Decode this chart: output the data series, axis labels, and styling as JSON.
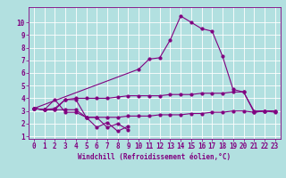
{
  "xlabel": "Windchill (Refroidissement éolien,°C)",
  "background_color": "#b2e0e0",
  "grid_color": "#ffffff",
  "line_color": "#800080",
  "xlim": [
    -0.5,
    23.5
  ],
  "ylim": [
    0.8,
    11.2
  ],
  "xticks": [
    0,
    1,
    2,
    3,
    4,
    5,
    6,
    7,
    8,
    9,
    10,
    11,
    12,
    13,
    14,
    15,
    16,
    17,
    18,
    19,
    20,
    21,
    22,
    23
  ],
  "yticks": [
    1,
    2,
    3,
    4,
    5,
    6,
    7,
    8,
    9,
    10
  ],
  "series1_x": [
    0,
    1,
    2,
    3,
    4,
    5,
    6,
    7,
    8,
    9
  ],
  "series1_y": [
    3.2,
    3.1,
    3.1,
    3.9,
    3.9,
    2.5,
    2.5,
    1.7,
    2.0,
    1.5
  ],
  "series2_x": [
    0,
    1,
    2,
    3,
    4,
    5,
    6,
    7,
    8,
    9
  ],
  "series2_y": [
    3.2,
    3.1,
    3.9,
    2.9,
    2.9,
    2.5,
    1.7,
    2.1,
    1.4,
    1.8
  ],
  "series3_x": [
    0,
    1,
    2,
    3,
    4,
    5,
    6,
    7,
    8,
    9,
    10,
    11,
    12,
    13,
    14,
    15,
    16,
    17,
    18,
    19,
    20,
    21,
    22,
    23
  ],
  "series3_y": [
    3.2,
    3.1,
    3.2,
    3.9,
    4.0,
    4.0,
    4.0,
    4.0,
    4.1,
    4.2,
    4.2,
    4.2,
    4.2,
    4.3,
    4.3,
    4.3,
    4.4,
    4.4,
    4.4,
    4.5,
    4.5,
    3.0,
    3.0,
    3.0
  ],
  "series4_x": [
    0,
    1,
    2,
    3,
    4,
    5,
    6,
    7,
    8,
    9,
    10,
    11,
    12,
    13,
    14,
    15,
    16,
    17,
    18,
    19,
    20,
    21,
    22,
    23
  ],
  "series4_y": [
    3.2,
    3.1,
    3.1,
    3.1,
    3.1,
    2.5,
    2.5,
    2.5,
    2.5,
    2.6,
    2.6,
    2.6,
    2.7,
    2.7,
    2.7,
    2.8,
    2.8,
    2.9,
    2.9,
    3.0,
    3.0,
    2.9,
    3.0,
    3.0
  ],
  "series5_x": [
    0,
    10,
    11,
    12,
    13,
    14,
    15,
    16,
    17,
    18,
    19,
    20,
    21,
    22,
    23
  ],
  "series5_y": [
    3.2,
    6.3,
    7.1,
    7.2,
    8.6,
    10.5,
    10.0,
    9.5,
    9.3,
    7.3,
    4.7,
    4.5,
    2.9,
    3.0,
    2.9
  ]
}
